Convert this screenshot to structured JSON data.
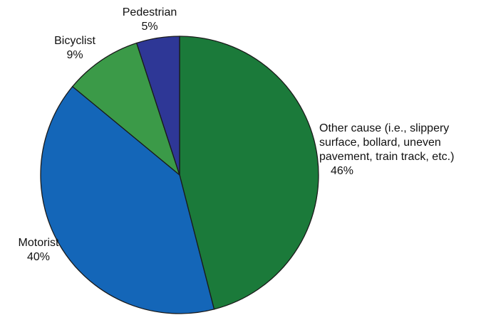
{
  "chart_data": {
    "type": "pie",
    "title": "",
    "slices": [
      {
        "label": "Other cause (i.e., slippery surface, bollard, uneven pavement, train track, etc.)",
        "label_lines": [
          "Other cause (i.e., slippery",
          "surface, bollard, uneven",
          "pavement, train track, etc.)"
        ],
        "value": 46,
        "value_label": "46%",
        "color": "#1b7a3a"
      },
      {
        "label": "Motorist",
        "value": 40,
        "value_label": "40%",
        "color": "#1466b8"
      },
      {
        "label": "Bicyclist",
        "value": 9,
        "value_label": "9%",
        "color": "#3b9a48"
      },
      {
        "label": "Pedestrian",
        "value": 5,
        "value_label": "5%",
        "color": "#2e3796"
      }
    ],
    "start_angle_deg": 0,
    "direction": "clockwise",
    "legend": "none"
  }
}
